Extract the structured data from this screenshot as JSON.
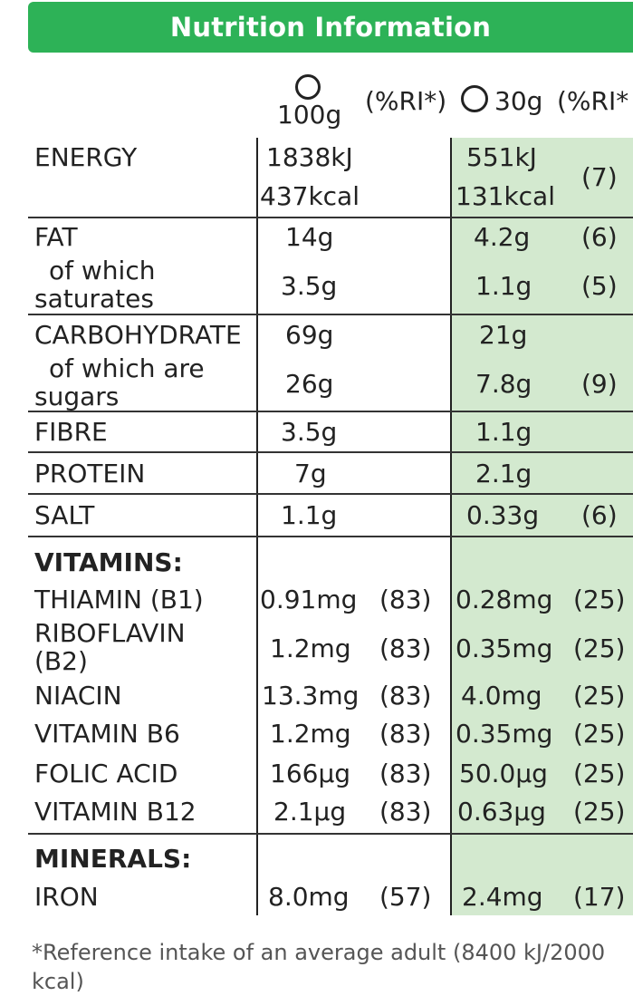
{
  "header": {
    "title": "Nutrition Information"
  },
  "columns": {
    "col1_amount": "100g",
    "col1_ri": "(%RI*)",
    "col2_amount": "30g",
    "col2_ri": "(%RI*"
  },
  "rows": {
    "energy": {
      "label": "ENERGY",
      "v100_kj": "1838kJ",
      "v100_kcal": "437kcal",
      "v30_kj": "551kJ",
      "v30_kcal": "131kcal",
      "ri30": "(7)"
    },
    "fat": {
      "label": "FAT",
      "v100": "14g",
      "v30": "4.2g",
      "ri30": "(6)"
    },
    "saturates": {
      "label1": "of which",
      "label2": "saturates",
      "v100": "3.5g",
      "v30": "1.1g",
      "ri30": "(5)"
    },
    "carbohydrate": {
      "label": "CARBOHYDRATE",
      "v100": "69g",
      "v30": "21g"
    },
    "sugars": {
      "label1": "of which are",
      "label2": "sugars",
      "v100": "26g",
      "v30": "7.8g",
      "ri30": "(9)"
    },
    "fibre": {
      "label": "FIBRE",
      "v100": "3.5g",
      "v30": "1.1g"
    },
    "protein": {
      "label": "PROTEIN",
      "v100": "7g",
      "v30": "2.1g"
    },
    "salt": {
      "label": "SALT",
      "v100": "1.1g",
      "v30": "0.33g",
      "ri30": "(6)"
    }
  },
  "vitamins": {
    "heading": "VITAMINS:",
    "thiamin": {
      "label": "THIAMIN (B1)",
      "v100": "0.91mg",
      "ri100": "(83)",
      "v30": "0.28mg",
      "ri30": "(25)"
    },
    "riboflavin": {
      "label1": "RIBOFLAVIN",
      "label2": "(B2)",
      "v100": "1.2mg",
      "ri100": "(83)",
      "v30": "0.35mg",
      "ri30": "(25)"
    },
    "niacin": {
      "label": "NIACIN",
      "v100": "13.3mg",
      "ri100": "(83)",
      "v30": "4.0mg",
      "ri30": "(25)"
    },
    "b6": {
      "label": "VITAMIN B6",
      "v100": "1.2mg",
      "ri100": "(83)",
      "v30": "0.35mg",
      "ri30": "(25)"
    },
    "folic": {
      "label": "FOLIC ACID",
      "v100": "166µg",
      "ri100": "(83)",
      "v30": "50.0µg",
      "ri30": "(25)"
    },
    "b12": {
      "label": "VITAMIN B12",
      "v100": "2.1µg",
      "ri100": "(83)",
      "v30": "0.63µg",
      "ri30": "(25)"
    }
  },
  "minerals": {
    "heading": "MINERALS:",
    "iron": {
      "label": "IRON",
      "v100": "8.0mg",
      "ri100": "(57)",
      "v30": "2.4mg",
      "ri30": "(17)"
    }
  },
  "footnote": "*Reference intake of an average adult (8400 kJ/2000 kcal)",
  "colors": {
    "header_bg": "#2db257",
    "serving_bg": "#d3e9cf"
  }
}
